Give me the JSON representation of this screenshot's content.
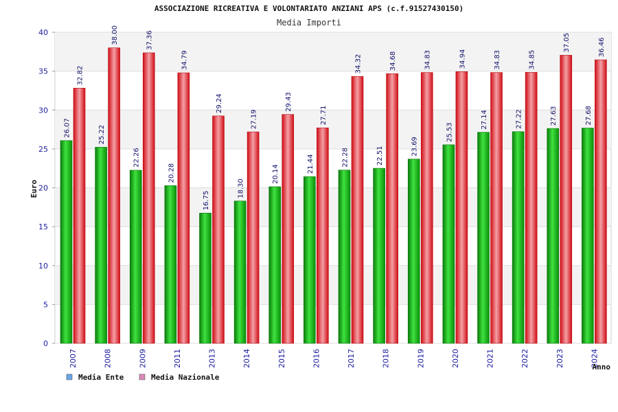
{
  "chart_data": {
    "type": "bar",
    "title": "ASSOCIAZIONE RICREATIVA E VOLONTARIATO ANZIANI APS (c.f.91527430150)",
    "subtitle": "Media Importi",
    "xlabel": "Anno",
    "ylabel": "Euro",
    "ylim": [
      0,
      40
    ],
    "yticks": [
      0,
      5,
      10,
      15,
      20,
      25,
      30,
      35,
      40
    ],
    "grid": true,
    "legend_position": "bottom-left",
    "categories": [
      "2007",
      "2008",
      "2009",
      "2011",
      "2013",
      "2014",
      "2015",
      "2016",
      "2017",
      "2018",
      "2019",
      "2020",
      "2021",
      "2022",
      "2023",
      "2024"
    ],
    "series": [
      {
        "name": "Media Ente",
        "color": "#11a611",
        "legend_color": "#6aa6e8",
        "values": [
          26.07,
          25.22,
          22.26,
          20.28,
          16.75,
          18.3,
          20.14,
          21.44,
          22.28,
          22.51,
          23.69,
          25.53,
          27.14,
          27.22,
          27.63,
          27.68
        ],
        "labels": [
          "26.07",
          "25.22",
          "22.26",
          "20.28",
          "16.75",
          "18.30",
          "20.14",
          "21.44",
          "22.28",
          "22.51",
          "23.69",
          "25.53",
          "27.14",
          "27.22",
          "27.63",
          "27.68"
        ]
      },
      {
        "name": "Media Nazionale",
        "color": "#e3131b",
        "legend_color": "#d98ab8",
        "values": [
          32.82,
          38.0,
          37.36,
          34.79,
          29.24,
          27.19,
          29.43,
          27.71,
          34.32,
          34.68,
          34.83,
          34.94,
          34.83,
          34.85,
          37.05,
          36.46
        ],
        "labels": [
          "32.82",
          "38.00",
          "37.36",
          "34.79",
          "29.24",
          "27.19",
          "29.43",
          "27.71",
          "34.32",
          "34.68",
          "34.83",
          "34.94",
          "34.83",
          "34.85",
          "37.05",
          "36.46"
        ]
      }
    ]
  }
}
